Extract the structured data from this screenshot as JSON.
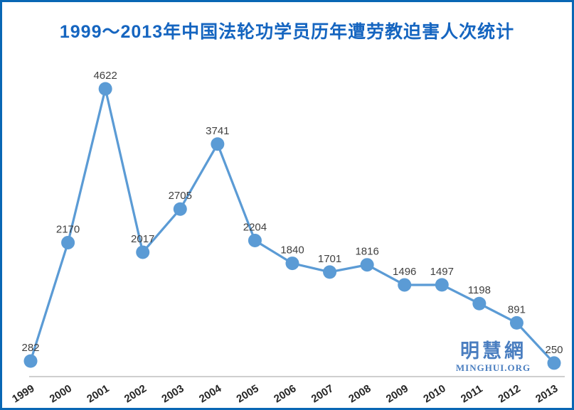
{
  "window": {
    "background": "#FFFFFF",
    "border_color": "#0967B4"
  },
  "header": {
    "title": "1999～2013年中国法轮功学员历年遭劳教迫害人次统计",
    "title_color": "#1565C0"
  },
  "watermark": {
    "cjk_text": "明慧網",
    "latin_text": "MINGHUI.ORG",
    "color": "#4A7EC0"
  },
  "chart_data": {
    "type": "line",
    "title": "1999～2013年中国法轮功学员历年遭劳教迫害人次统计",
    "categories": [
      "1999",
      "2000",
      "2001",
      "2002",
      "2003",
      "2004",
      "2005",
      "2006",
      "2007",
      "2008",
      "2009",
      "2010",
      "2011",
      "2012",
      "2013"
    ],
    "values": [
      282,
      2170,
      4622,
      2017,
      2705,
      3741,
      2204,
      1840,
      1701,
      1816,
      1496,
      1497,
      1198,
      891,
      250
    ],
    "xlabel": "",
    "ylabel": "",
    "ylim": [
      0,
      5000
    ],
    "grid": false,
    "legend_position": "none",
    "data_labels_shown": true,
    "style": {
      "line_color": "#5B9BD5",
      "marker_color": "#5B9BD5",
      "data_label_color": "#404040",
      "axis_line_color": "#BFBFBF",
      "tick_label_color": "#262626"
    }
  }
}
